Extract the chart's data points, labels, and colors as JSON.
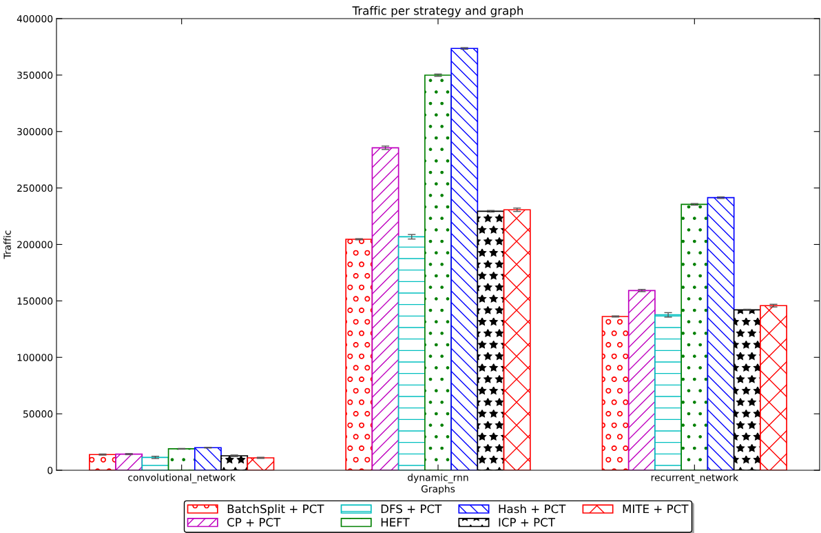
{
  "chart_data": {
    "type": "bar",
    "title": "Traffic per strategy and graph",
    "xlabel": "Graphs",
    "ylabel": "Traffic",
    "categories": [
      "convolutional_network",
      "dynamic_rnn",
      "recurrent_network"
    ],
    "ylim": [
      0,
      400000
    ],
    "yticks": [
      0,
      50000,
      100000,
      150000,
      200000,
      250000,
      300000,
      350000,
      400000
    ],
    "grid": false,
    "legend": "bottom",
    "series": [
      {
        "name": "BatchSplit + PCT",
        "color": "#ff0000",
        "values": [
          13900,
          204600,
          136200
        ],
        "errors": [
          500,
          500,
          500
        ]
      },
      {
        "name": "CP + PCT",
        "color": "#bf00bf",
        "values": [
          14300,
          285600,
          159200
        ],
        "errors": [
          500,
          1500,
          1000
        ]
      },
      {
        "name": "DFS + PCT",
        "color": "#00bfbf",
        "values": [
          11400,
          206800,
          137600
        ],
        "errors": [
          1000,
          2000,
          2000
        ]
      },
      {
        "name": "HEFT",
        "color": "#008000",
        "values": [
          19000,
          349900,
          235500
        ],
        "errors": [
          300,
          1000,
          700
        ]
      },
      {
        "name": "Hash + PCT",
        "color": "#0000ff",
        "values": [
          20000,
          373600,
          241400
        ],
        "errors": [
          300,
          700,
          700
        ]
      },
      {
        "name": "ICP + PCT",
        "color": "#000000",
        "values": [
          12800,
          229400,
          142100
        ],
        "errors": [
          700,
          700,
          500
        ]
      },
      {
        "name": "MITE + PCT",
        "color": "#ff0000",
        "values": [
          11000,
          230700,
          145800
        ],
        "errors": [
          500,
          1500,
          1200
        ]
      }
    ]
  }
}
